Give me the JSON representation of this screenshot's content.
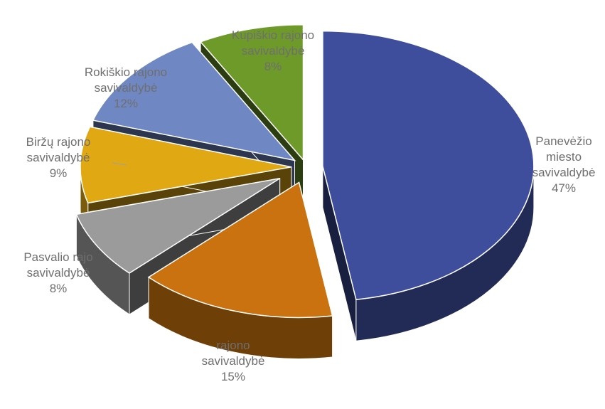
{
  "chart_data": {
    "type": "pie",
    "style": "3d-exploded",
    "slices": [
      {
        "label_lines": [
          "Panevėžio",
          "miesto",
          "savivaldybė"
        ],
        "percent_label": "47%",
        "value": 47,
        "color": "#3e4d9c"
      },
      {
        "label_lines": [
          "rajono",
          "savivaldybė"
        ],
        "percent_label": "15%",
        "value": 15,
        "color": "#c9720f"
      },
      {
        "label_lines": [
          "Pasvalio rajo",
          "savivaldybė"
        ],
        "percent_label": "8%",
        "value": 8,
        "color": "#9b9b9b"
      },
      {
        "label_lines": [
          "Biržų rajono",
          "savivaldybė"
        ],
        "percent_label": "9%",
        "value": 9,
        "color": "#e0a813"
      },
      {
        "label_lines": [
          "Rokiškio rajono",
          "savivaldybė"
        ],
        "percent_label": "12%",
        "value": 12,
        "color": "#6f88c4"
      },
      {
        "label_lines": [
          "Kupiškio rajono",
          "savivaldybė"
        ],
        "percent_label": "8%",
        "value": 8,
        "color": "#6e9a2a"
      }
    ]
  }
}
